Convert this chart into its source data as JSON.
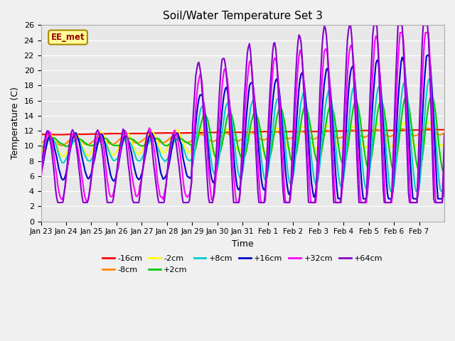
{
  "title": "Soil/Water Temperature Set 3",
  "xlabel": "Time",
  "ylabel": "Temperature (C)",
  "ylim": [
    0,
    26
  ],
  "yticks": [
    0,
    2,
    4,
    6,
    8,
    10,
    12,
    14,
    16,
    18,
    20,
    22,
    24,
    26
  ],
  "xtick_labels": [
    "Jan 23",
    "Jan 24",
    "Jan 25",
    "Jan 26",
    "Jan 27",
    "Jan 28",
    "Jan 29",
    "Jan 30",
    "Jan 31",
    "Feb 1",
    "Feb 2",
    "Feb 3",
    "Feb 4",
    "Feb 5",
    "Feb 6",
    "Feb 7"
  ],
  "colors": {
    "-16cm": "#ff0000",
    "-8cm": "#ff8800",
    "-2cm": "#ffff00",
    "+2cm": "#00cc00",
    "+8cm": "#00cccc",
    "+16cm": "#0000cc",
    "+32cm": "#ff00ff",
    "+64cm": "#8800cc"
  },
  "watermark_text": "EE_met",
  "watermark_bg": "#ffff99",
  "watermark_border": "#aa8800",
  "fig_bg": "#f0f0f0",
  "plot_bg": "#e8e8e8"
}
